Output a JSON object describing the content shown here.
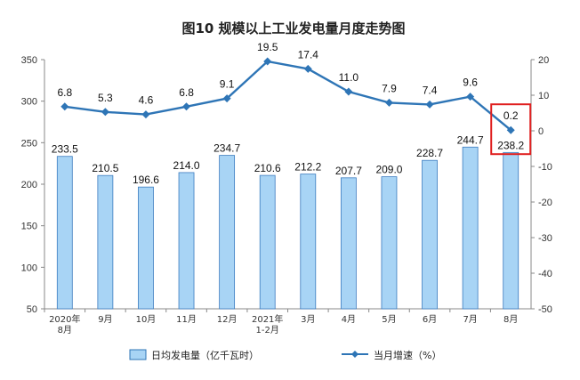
{
  "chart_data": {
    "type": "bar",
    "title": "图10  规模以上工业发电量月度走势图",
    "categories": [
      "2020年\n8月",
      "9月",
      "10月",
      "11月",
      "12月",
      "2021年\n1-2月",
      "3月",
      "4月",
      "5月",
      "6月",
      "7月",
      "8月"
    ],
    "series": [
      {
        "name": "日均发电量（亿千瓦时）",
        "type": "bar",
        "axis": "left",
        "values": [
          233.5,
          210.5,
          196.6,
          214.0,
          234.7,
          210.6,
          212.2,
          207.7,
          209.0,
          228.7,
          244.7,
          238.2
        ],
        "labels": [
          "233.5",
          "210.5",
          "196.6",
          "214.0",
          "234.7",
          "210.6",
          "212.2",
          "207.7",
          "209.0",
          "228.7",
          "244.7",
          "238.2"
        ],
        "color": "#a8d4f5"
      },
      {
        "name": "当月增速（%）",
        "type": "line",
        "axis": "right",
        "values": [
          6.8,
          5.3,
          4.6,
          6.8,
          9.1,
          19.5,
          17.4,
          11.0,
          7.9,
          7.4,
          9.6,
          0.2
        ],
        "labels": [
          "6.8",
          "5.3",
          "4.6",
          "6.8",
          "9.1",
          "19.5",
          "17.4",
          "11.0",
          "7.9",
          "7.4",
          "9.6",
          "0.2"
        ],
        "color": "#2e75b6"
      }
    ],
    "y_left": {
      "min": 50,
      "max": 350,
      "ticks": [
        "50",
        "100",
        "150",
        "200",
        "250",
        "300",
        "350"
      ]
    },
    "y_right": {
      "min": -50,
      "max": 20,
      "ticks": [
        "-50",
        "-40",
        "-30",
        "-20",
        "-10",
        "0",
        "10",
        "20"
      ]
    },
    "grid": false,
    "legend": "bottom",
    "highlight": {
      "index": 11,
      "color": "#e01f1f"
    }
  }
}
